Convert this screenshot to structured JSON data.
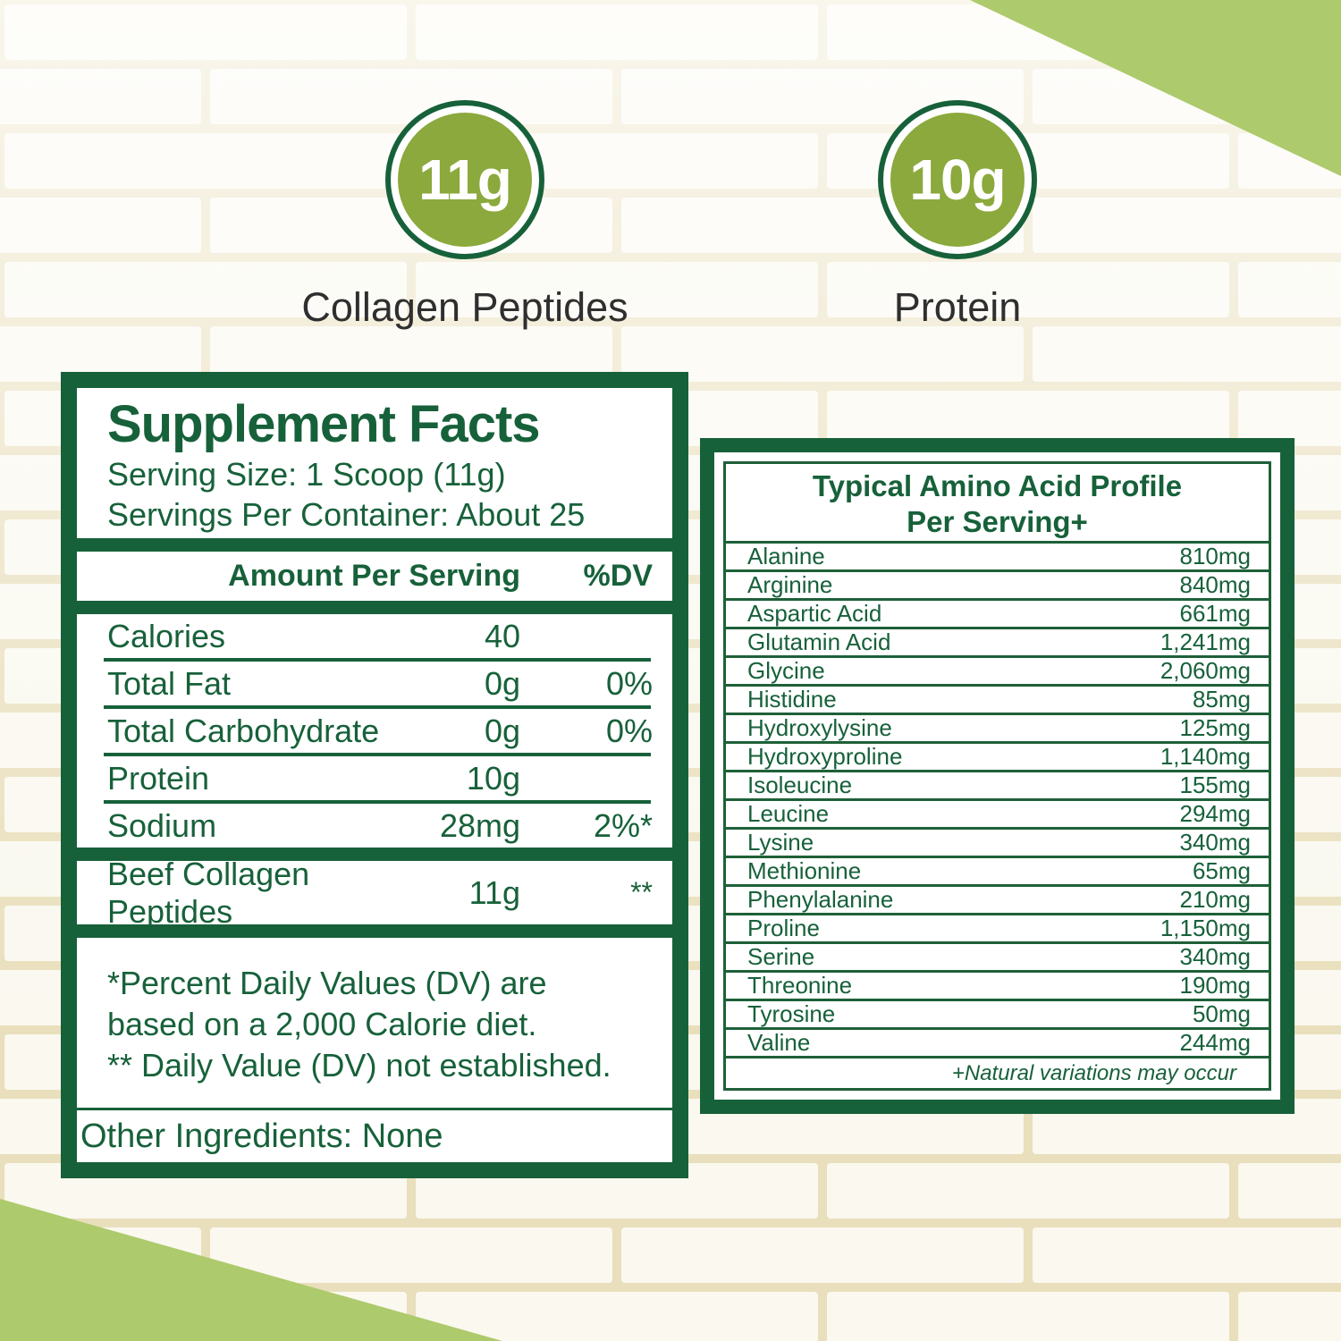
{
  "colors": {
    "green": "#17613A",
    "olive": "#8BA93C",
    "light": "#ADCA6C"
  },
  "badges": [
    {
      "value": "11g",
      "label": "Collagen Peptides"
    },
    {
      "value": "10g",
      "label": "Protein"
    }
  ],
  "supplement_facts": {
    "title": "Supplement Facts",
    "serving_size": "Serving Size: 1 Scoop (11g)",
    "servings_per_container": "Servings Per Container: About 25",
    "amount_header": "Amount Per Serving",
    "dv_header": "%DV",
    "rows": [
      {
        "name": "Calories",
        "amount": "40",
        "dv": ""
      },
      {
        "name": "Total Fat",
        "amount": "0g",
        "dv": "0%"
      },
      {
        "name": "Total Carbohydrate",
        "amount": "0g",
        "dv": "0%"
      },
      {
        "name": "Protein",
        "amount": "10g",
        "dv": ""
      },
      {
        "name": "Sodium",
        "amount": "28mg",
        "dv": "2%*"
      }
    ],
    "ingredient_row": {
      "name": "Beef Collagen Peptides",
      "amount": "11g",
      "dv": "**"
    },
    "footnotes": [
      "*Percent Daily Values (DV) are based on a 2,000 Calorie diet.",
      "** Daily Value (DV) not established."
    ],
    "other_ingredients": "Other Ingredients: None"
  },
  "amino_profile": {
    "title_line1": "Typical Amino Acid Profile",
    "title_line2": "Per Serving+",
    "rows": [
      {
        "name": "Alanine",
        "amount": "810mg"
      },
      {
        "name": "Arginine",
        "amount": "840mg"
      },
      {
        "name": "Aspartic Acid",
        "amount": "661mg"
      },
      {
        "name": "Glutamin Acid",
        "amount": "1,241mg"
      },
      {
        "name": "Glycine",
        "amount": "2,060mg"
      },
      {
        "name": "Histidine",
        "amount": "85mg"
      },
      {
        "name": "Hydroxylysine",
        "amount": "125mg"
      },
      {
        "name": "Hydroxyproline",
        "amount": "1,140mg"
      },
      {
        "name": "Isoleucine",
        "amount": "155mg"
      },
      {
        "name": "Leucine",
        "amount": "294mg"
      },
      {
        "name": "Lysine",
        "amount": "340mg"
      },
      {
        "name": "Methionine",
        "amount": "65mg"
      },
      {
        "name": "Phenylalanine",
        "amount": "210mg"
      },
      {
        "name": "Proline",
        "amount": "1,150mg"
      },
      {
        "name": "Serine",
        "amount": "340mg"
      },
      {
        "name": "Threonine",
        "amount": "190mg"
      },
      {
        "name": "Tyrosine",
        "amount": "50mg"
      },
      {
        "name": "Valine",
        "amount": "244mg"
      }
    ],
    "footnote": "+Natural variations may occur"
  }
}
